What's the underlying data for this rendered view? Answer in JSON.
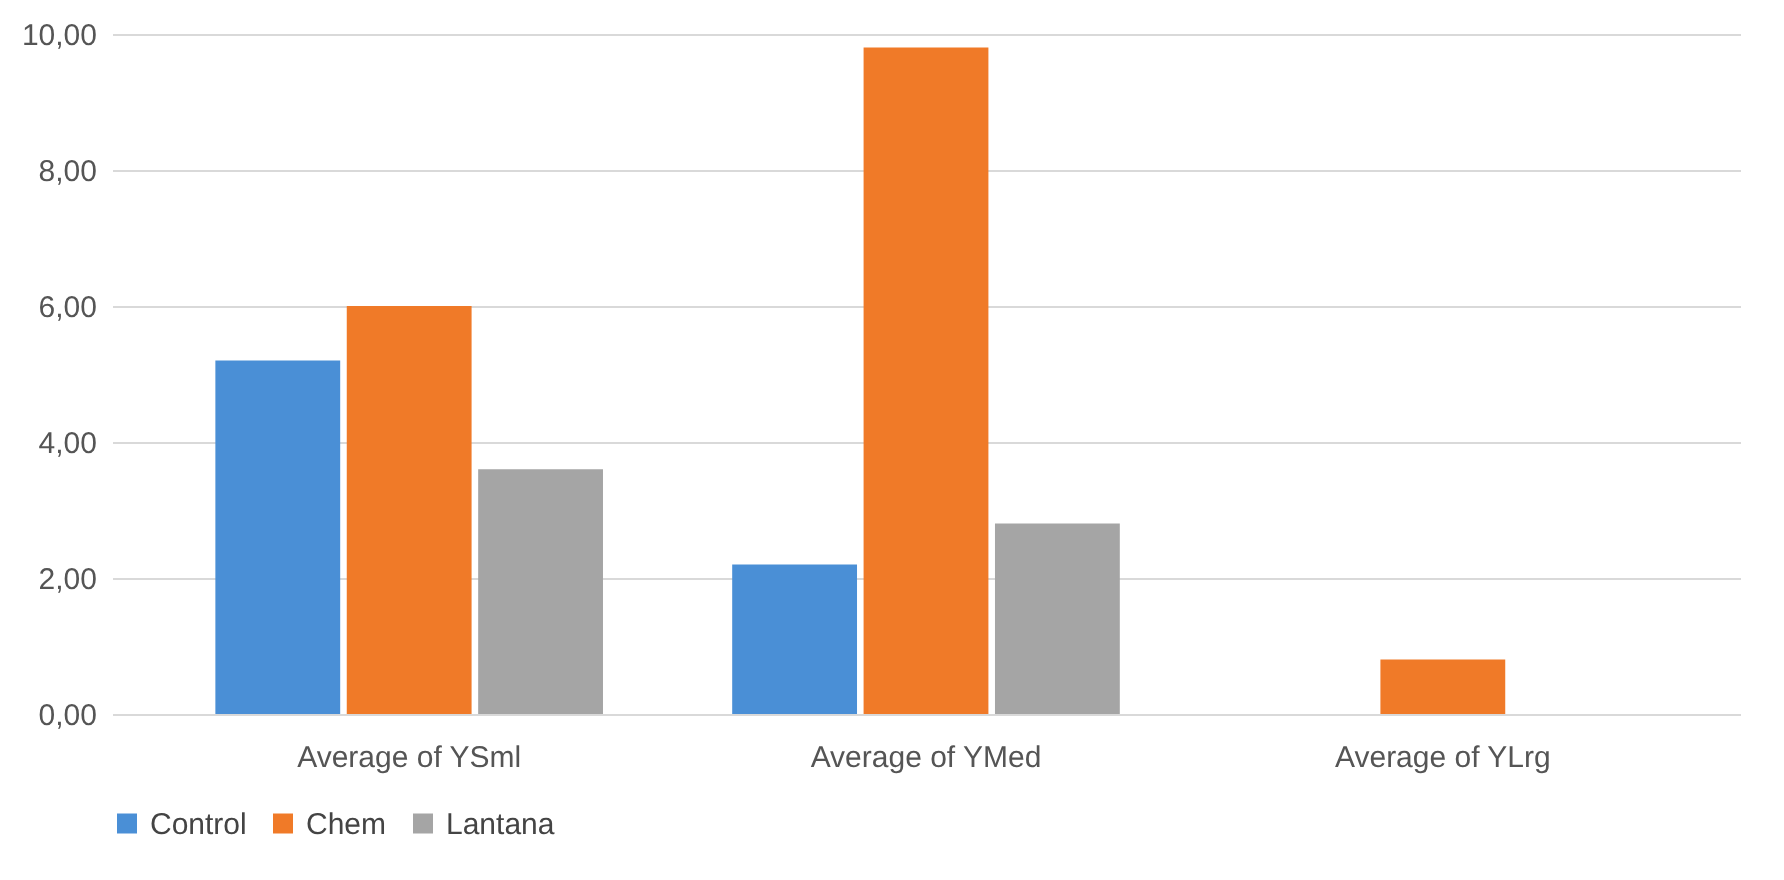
{
  "chart_data": {
    "type": "bar",
    "categories": [
      "Average of YSml",
      "Average of YMed",
      "Average of YLrg"
    ],
    "series": [
      {
        "name": "Control",
        "color": "#4a8fd6",
        "values": [
          5.2,
          2.2,
          0
        ]
      },
      {
        "name": "Chem",
        "color": "#f07a28",
        "values": [
          6.0,
          9.8,
          0.8
        ]
      },
      {
        "name": "Lantana",
        "color": "#a5a5a5",
        "values": [
          3.6,
          2.8,
          0
        ]
      }
    ],
    "ylim": [
      0,
      10
    ],
    "yticks": [
      {
        "value": 0,
        "label": "0,00"
      },
      {
        "value": 2,
        "label": "2,00"
      },
      {
        "value": 4,
        "label": "4,00"
      },
      {
        "value": 6,
        "label": "6,00"
      },
      {
        "value": 8,
        "label": "8,00"
      },
      {
        "value": 10,
        "label": "10,00"
      }
    ],
    "grid": "y",
    "legend": "bottom"
  }
}
